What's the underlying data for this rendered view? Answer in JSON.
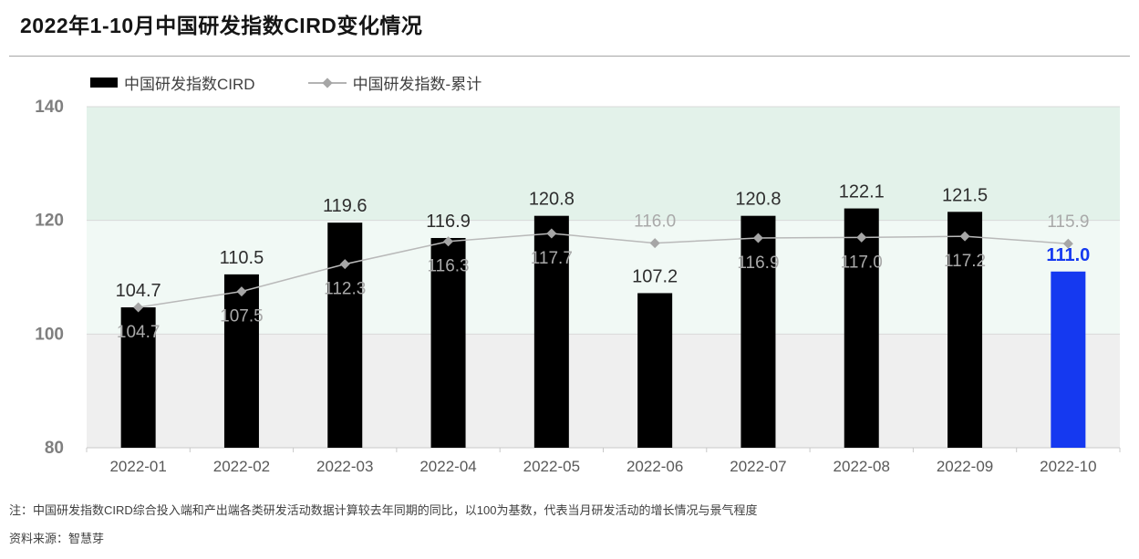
{
  "page": {
    "title": "2022年1-10月中国研发指数CIRD变化情况",
    "note": "注：中国研发指数CIRD综合投入端和产出端各类研发活动数据计算较去年同期的同比，以100为基数，代表当月研发活动的增长情况与景气程度",
    "source": "资料来源：智慧芽"
  },
  "legend": [
    {
      "label": "中国研发指数CIRD",
      "type": "bar",
      "color": "#000000"
    },
    {
      "label": "中国研发指数-累计",
      "type": "line",
      "color": "#b3b3b3",
      "marker_color": "#a6a6a6"
    }
  ],
  "chart_data": {
    "type": "bar+line",
    "title": "2022年1-10月中国研发指数CIRD变化情况",
    "xlabel": "",
    "ylabel": "",
    "categories": [
      "2022-01",
      "2022-02",
      "2022-03",
      "2022-04",
      "2022-05",
      "2022-06",
      "2022-07",
      "2022-08",
      "2022-09",
      "2022-10"
    ],
    "series": [
      {
        "name": "中国研发指数CIRD",
        "type": "bar",
        "values": [
          104.7,
          110.5,
          119.6,
          116.9,
          120.8,
          107.2,
          120.8,
          122.1,
          121.5,
          111.0
        ],
        "color": "#000000",
        "label_color": "#2e2e2e",
        "highlight_index": 9,
        "highlight_color": "#1539f0"
      },
      {
        "name": "中国研发指数-累计",
        "type": "line",
        "values": [
          104.7,
          107.5,
          112.3,
          116.3,
          117.7,
          116.0,
          116.9,
          117.0,
          117.2,
          115.9
        ],
        "color": "#b9b9b9",
        "marker": "diamond",
        "marker_color": "#a6a6a6",
        "label_color": "#a9a9a9",
        "label_above_indices": [
          5,
          9
        ]
      }
    ],
    "ylim": [
      80,
      140
    ],
    "yticks": [
      80,
      100,
      120,
      140
    ],
    "bands": [
      {
        "from": 120,
        "to": 140,
        "color": "#e3f2ea"
      },
      {
        "from": 100,
        "to": 120,
        "color": "#f1f9f5"
      },
      {
        "from": 80,
        "to": 100,
        "color": "#efefef"
      }
    ],
    "grid": {
      "gridline_color": "#d9d9d9",
      "baseline_color": "#c8c8c8",
      "tick_color": "#c8c8c8"
    },
    "axis_label_colors": {
      "y": "#7f7f7f",
      "x": "#595959"
    },
    "legend_position": "top-left"
  }
}
